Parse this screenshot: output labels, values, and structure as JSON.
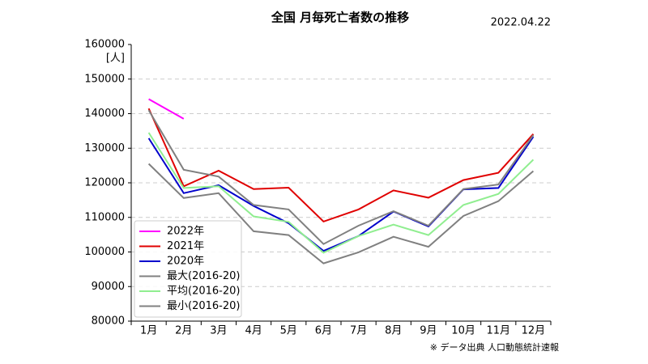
{
  "chart_data": {
    "type": "line",
    "title": "全国 月毎死亡者数の推移",
    "date": "2022.04.22",
    "source": "※ データ出典 人口動態統計速報",
    "ylabel": "[人]",
    "categories": [
      "1月",
      "2月",
      "3月",
      "4月",
      "5月",
      "6月",
      "7月",
      "8月",
      "9月",
      "10月",
      "11月",
      "12月"
    ],
    "series": [
      {
        "name": "2022年",
        "color": "#ff00ff",
        "values": [
          144200,
          138500,
          null,
          null,
          null,
          null,
          null,
          null,
          null,
          null,
          null,
          null
        ]
      },
      {
        "name": "2021年",
        "color": "#e00000",
        "values": [
          141500,
          119000,
          123500,
          118200,
          118600,
          108800,
          112300,
          117800,
          115700,
          120800,
          122900,
          134100
        ]
      },
      {
        "name": "2020年",
        "color": "#0000cc",
        "values": [
          132900,
          117000,
          119300,
          113300,
          108300,
          100300,
          104600,
          111700,
          107400,
          118100,
          118500,
          133300
        ]
      },
      {
        "name": "最大(2016-20)",
        "color": "#808080",
        "values": [
          141000,
          123800,
          121800,
          113600,
          112300,
          102300,
          107600,
          111800,
          107600,
          118200,
          119500,
          133800
        ]
      },
      {
        "name": "平均(2016-20)",
        "color": "#90ee90",
        "values": [
          134500,
          118500,
          119000,
          110300,
          108700,
          99800,
          104600,
          107900,
          104900,
          113600,
          116800,
          126700
        ]
      },
      {
        "name": "最小(2016-20)",
        "color": "#808080",
        "values": [
          125500,
          115600,
          117000,
          106000,
          104900,
          96700,
          99900,
          104400,
          101500,
          110400,
          114700,
          123400
        ]
      }
    ],
    "ylim": [
      80000,
      160000
    ],
    "yticks": [
      80000,
      90000,
      100000,
      110000,
      120000,
      130000,
      140000,
      150000,
      160000
    ],
    "grid": true,
    "legend": "lower left"
  }
}
